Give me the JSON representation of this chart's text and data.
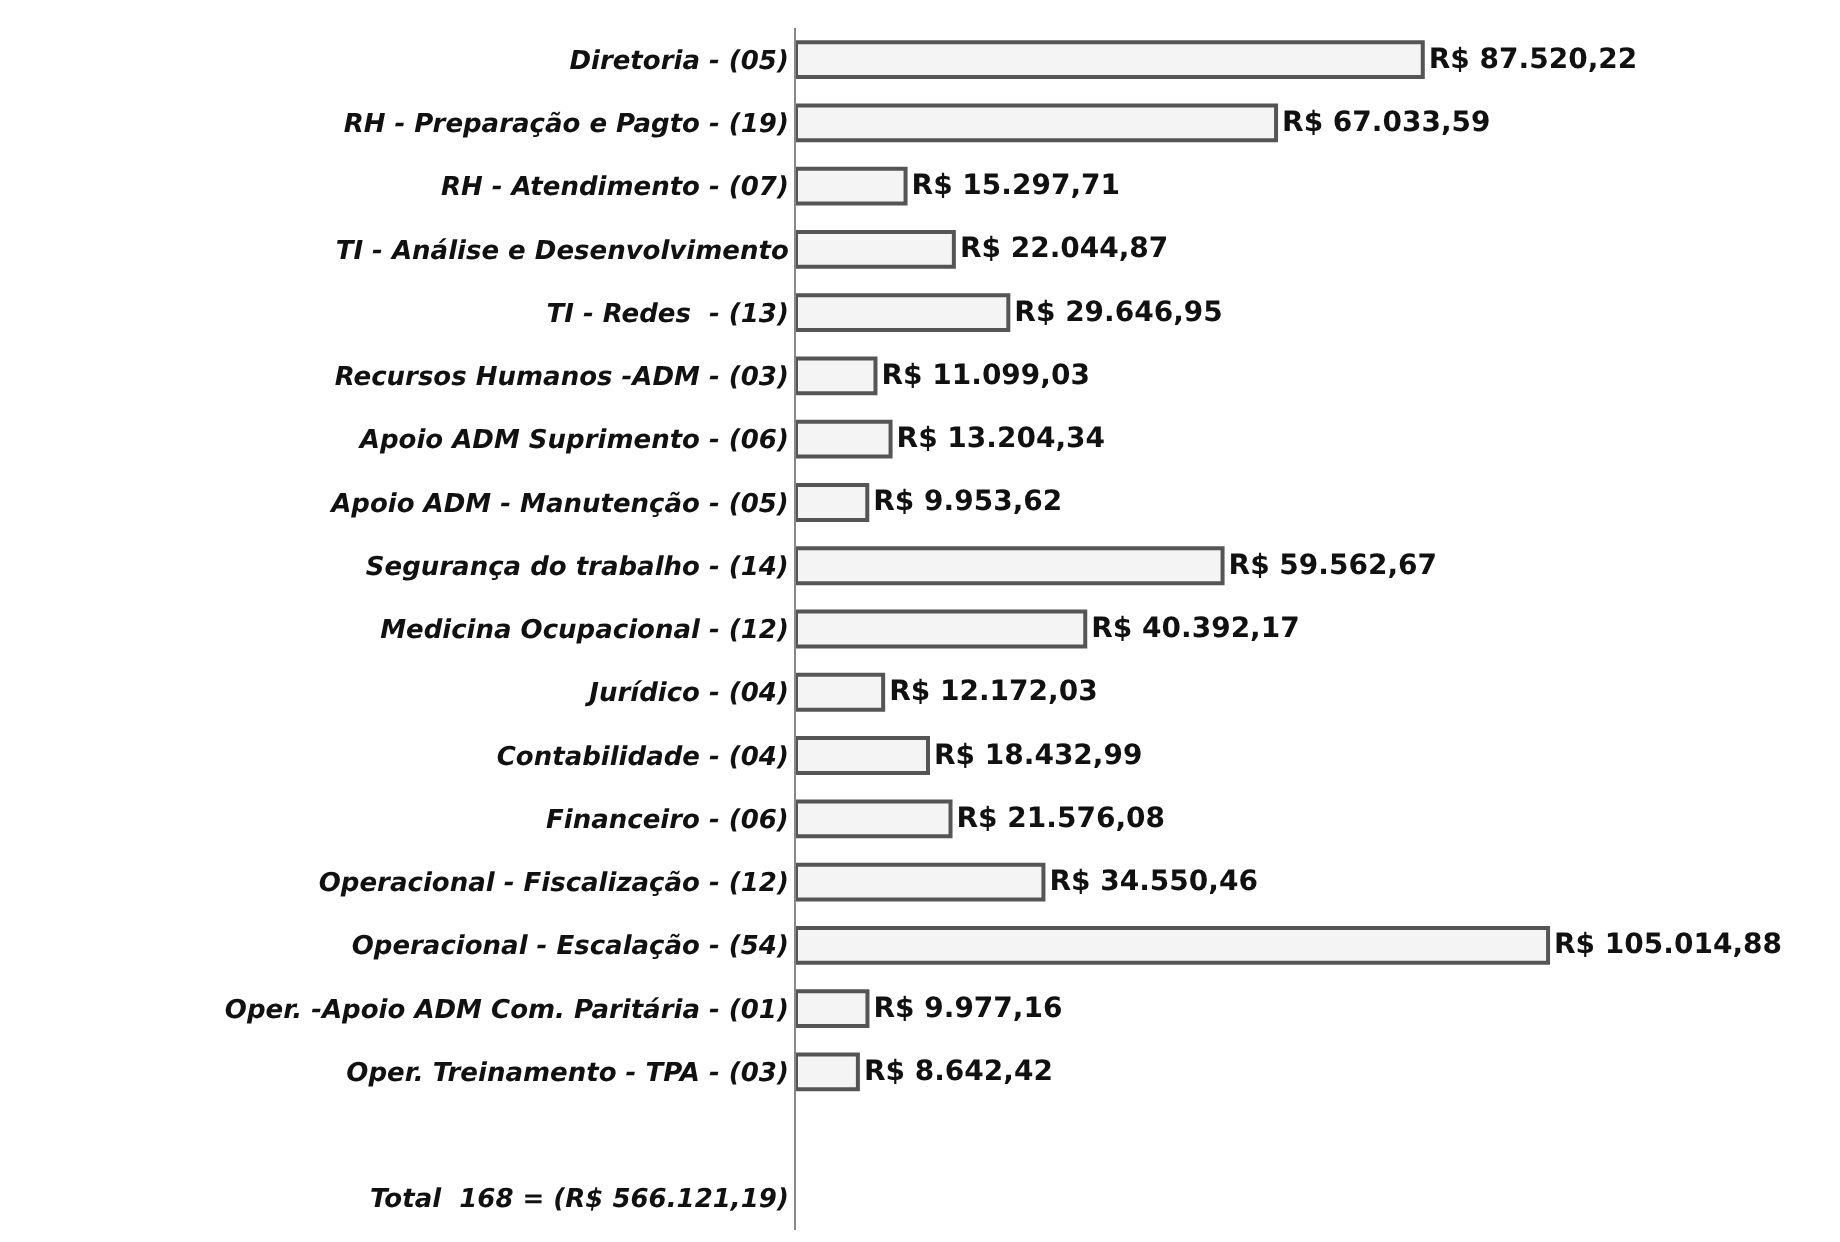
{
  "chart_data": {
    "type": "bar",
    "orientation": "horizontal",
    "tick_labels": "y",
    "categories": [
      "Diretoria - (05)",
      "RH - Preparação e Pagto - (19)",
      "RH - Atendimento - (07)",
      "TI - Análise e Desenvolvimento",
      "TI - Redes  - (13)",
      "Recursos Humanos -ADM - (03)",
      "Apoio ADM Suprimento - (06)",
      "Apoio ADM - Manutenção - (05)",
      "Segurança do trabalho - (14)",
      "Medicina Ocupacional - (12)",
      "Jurídico - (04)",
      "Contabilidade - (04)",
      "Financeiro - (06)",
      "Operacional - Fiscalização - (12)",
      "Operacional - Escalação - (54)",
      "Oper. -Apoio ADM Com. Paritária - (01)",
      "Oper. Treinamento - TPA - (03)",
      null,
      "Total  168 = (R$ 566.121,19)"
    ],
    "values": [
      87520.22,
      67033.59,
      15297.71,
      22044.87,
      29646.95,
      11099.03,
      13204.34,
      9953.62,
      59562.67,
      40392.17,
      12172.03,
      18432.99,
      21576.08,
      34550.46,
      105014.88,
      9977.16,
      8642.42,
      null,
      null
    ],
    "value_labels": [
      "R$ 87.520,22",
      "R$ 67.033,59",
      "R$ 15.297,71",
      "R$ 22.044,87",
      "R$ 29.646,95",
      "R$ 11.099,03",
      "R$ 13.204,34",
      "R$ 9.953,62",
      "R$ 59.562,67",
      "R$ 40.392,17",
      "R$ 12.172,03",
      "R$ 18.432,99",
      "R$ 21.576,08",
      "R$ 34.550,46",
      "R$ 105.014,88",
      "R$ 9.977,16",
      "R$ 8.642,42",
      null,
      null
    ],
    "color": "#f4f4f4"
  }
}
